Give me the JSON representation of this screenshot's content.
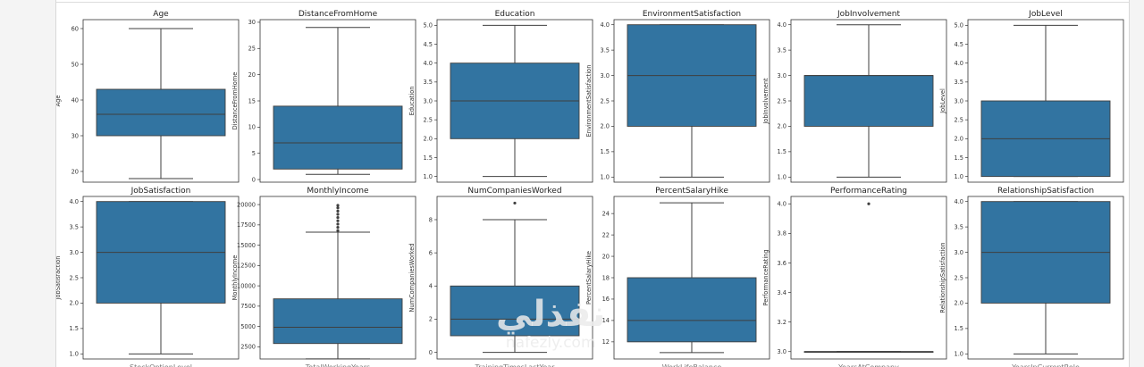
{
  "chart_data": [
    {
      "type": "box",
      "title": "Age",
      "ylabel": "Age",
      "ylim": [
        17,
        62.5
      ],
      "ticks": [
        20,
        30,
        40,
        50,
        60
      ],
      "whisker_low": 18,
      "q1": 30,
      "median": 36,
      "q3": 43,
      "whisker_high": 60,
      "outliers": []
    },
    {
      "type": "box",
      "title": "DistanceFromHome",
      "ylabel": "DistanceFromHome",
      "ylim": [
        -0.5,
        30.5
      ],
      "ticks": [
        0,
        5,
        10,
        15,
        20,
        25,
        30
      ],
      "whisker_low": 1,
      "q1": 2,
      "median": 7,
      "q3": 14,
      "whisker_high": 29,
      "outliers": []
    },
    {
      "type": "box",
      "title": "Education",
      "ylabel": "Education",
      "ylim": [
        0.85,
        5.15
      ],
      "ticks": [
        1.0,
        1.5,
        2.0,
        2.5,
        3.0,
        3.5,
        4.0,
        4.5,
        5.0
      ],
      "tick_decimals": 1,
      "whisker_low": 1,
      "q1": 2,
      "median": 3,
      "q3": 4,
      "whisker_high": 5,
      "outliers": []
    },
    {
      "type": "box",
      "title": "EnvironmentSatisfaction",
      "ylabel": "EnvironmentSatisfaction",
      "ylim": [
        0.9,
        4.1
      ],
      "ticks": [
        1.0,
        1.5,
        2.0,
        2.5,
        3.0,
        3.5,
        4.0
      ],
      "tick_decimals": 1,
      "whisker_low": 1,
      "q1": 2,
      "median": 3,
      "q3": 4,
      "whisker_high": 4,
      "outliers": []
    },
    {
      "type": "box",
      "title": "JobInvolvement",
      "ylabel": "JobInvolvement",
      "ylim": [
        0.9,
        4.1
      ],
      "ticks": [
        1.0,
        1.5,
        2.0,
        2.5,
        3.0,
        3.5,
        4.0
      ],
      "tick_decimals": 1,
      "whisker_low": 1,
      "q1": 2,
      "median": 3,
      "q3": 3,
      "whisker_high": 4,
      "outliers": []
    },
    {
      "type": "box",
      "title": "JobLevel",
      "ylabel": "JobLevel",
      "ylim": [
        0.85,
        5.15
      ],
      "ticks": [
        1.0,
        1.5,
        2.0,
        2.5,
        3.0,
        3.5,
        4.0,
        4.5,
        5.0
      ],
      "tick_decimals": 1,
      "whisker_low": 1,
      "q1": 1,
      "median": 2,
      "q3": 3,
      "whisker_high": 5,
      "outliers": []
    },
    {
      "type": "box",
      "title": "JobSatisfaction",
      "ylabel": "JobSatisfaction",
      "ylim": [
        0.9,
        4.1
      ],
      "ticks": [
        1.0,
        1.5,
        2.0,
        2.5,
        3.0,
        3.5,
        4.0
      ],
      "tick_decimals": 1,
      "whisker_low": 1,
      "q1": 2,
      "median": 3,
      "q3": 4,
      "whisker_high": 4,
      "outliers": []
    },
    {
      "type": "box",
      "title": "MonthlyIncome",
      "ylabel": "MonthlyIncome",
      "ylim": [
        1000,
        21000
      ],
      "ticks": [
        2500,
        5000,
        7500,
        10000,
        12500,
        15000,
        17500,
        20000
      ],
      "whisker_low": 1009,
      "q1": 2900,
      "median": 4900,
      "q3": 8400,
      "whisker_high": 16600,
      "outliers": [
        16800,
        17200,
        17600,
        18000,
        18400,
        18800,
        19200,
        19600,
        19900
      ]
    },
    {
      "type": "box",
      "title": "NumCompaniesWorked",
      "ylabel": "NumCompaniesWorked",
      "ylim": [
        -0.4,
        9.4
      ],
      "ticks": [
        0,
        2,
        4,
        6,
        8
      ],
      "whisker_low": 0,
      "q1": 1,
      "median": 2,
      "q3": 4,
      "whisker_high": 8,
      "outliers": [
        9
      ]
    },
    {
      "type": "box",
      "title": "PercentSalaryHike",
      "ylabel": "PercentSalaryHike",
      "ylim": [
        10.4,
        25.6
      ],
      "ticks": [
        12,
        14,
        16,
        18,
        20,
        22,
        24
      ],
      "whisker_low": 11,
      "q1": 12,
      "median": 14,
      "q3": 18,
      "whisker_high": 25,
      "outliers": []
    },
    {
      "type": "box",
      "title": "PerformanceRating",
      "ylabel": "PerformanceRating",
      "ylim": [
        2.95,
        4.05
      ],
      "ticks": [
        3.0,
        3.2,
        3.4,
        3.6,
        3.8,
        4.0
      ],
      "tick_decimals": 1,
      "whisker_low": 3,
      "q1": 3,
      "median": 3,
      "q3": 3,
      "whisker_high": 3,
      "outliers": [
        4
      ]
    },
    {
      "type": "box",
      "title": "RelationshipSatisfaction",
      "ylabel": "RelationshipSatisfaction",
      "ylim": [
        0.9,
        4.1
      ],
      "ticks": [
        1.0,
        1.5,
        2.0,
        2.5,
        3.0,
        3.5,
        4.0
      ],
      "tick_decimals": 1,
      "whisker_low": 1,
      "q1": 2,
      "median": 3,
      "q3": 4,
      "whisker_high": 4,
      "outliers": []
    }
  ],
  "colors": {
    "box_fill": "#3274a1",
    "line": "#3f3f3f"
  },
  "watermark": {
    "main": "نفذلي",
    "sub": "nafezly.com"
  },
  "bottom_cut_labels": [
    "StockOptionLevel",
    "TotalWorkingYears",
    "TrainingTimesLastYear",
    "WorkLifeBalance",
    "YearsAtCompany",
    "YearsInCurrentRole"
  ]
}
